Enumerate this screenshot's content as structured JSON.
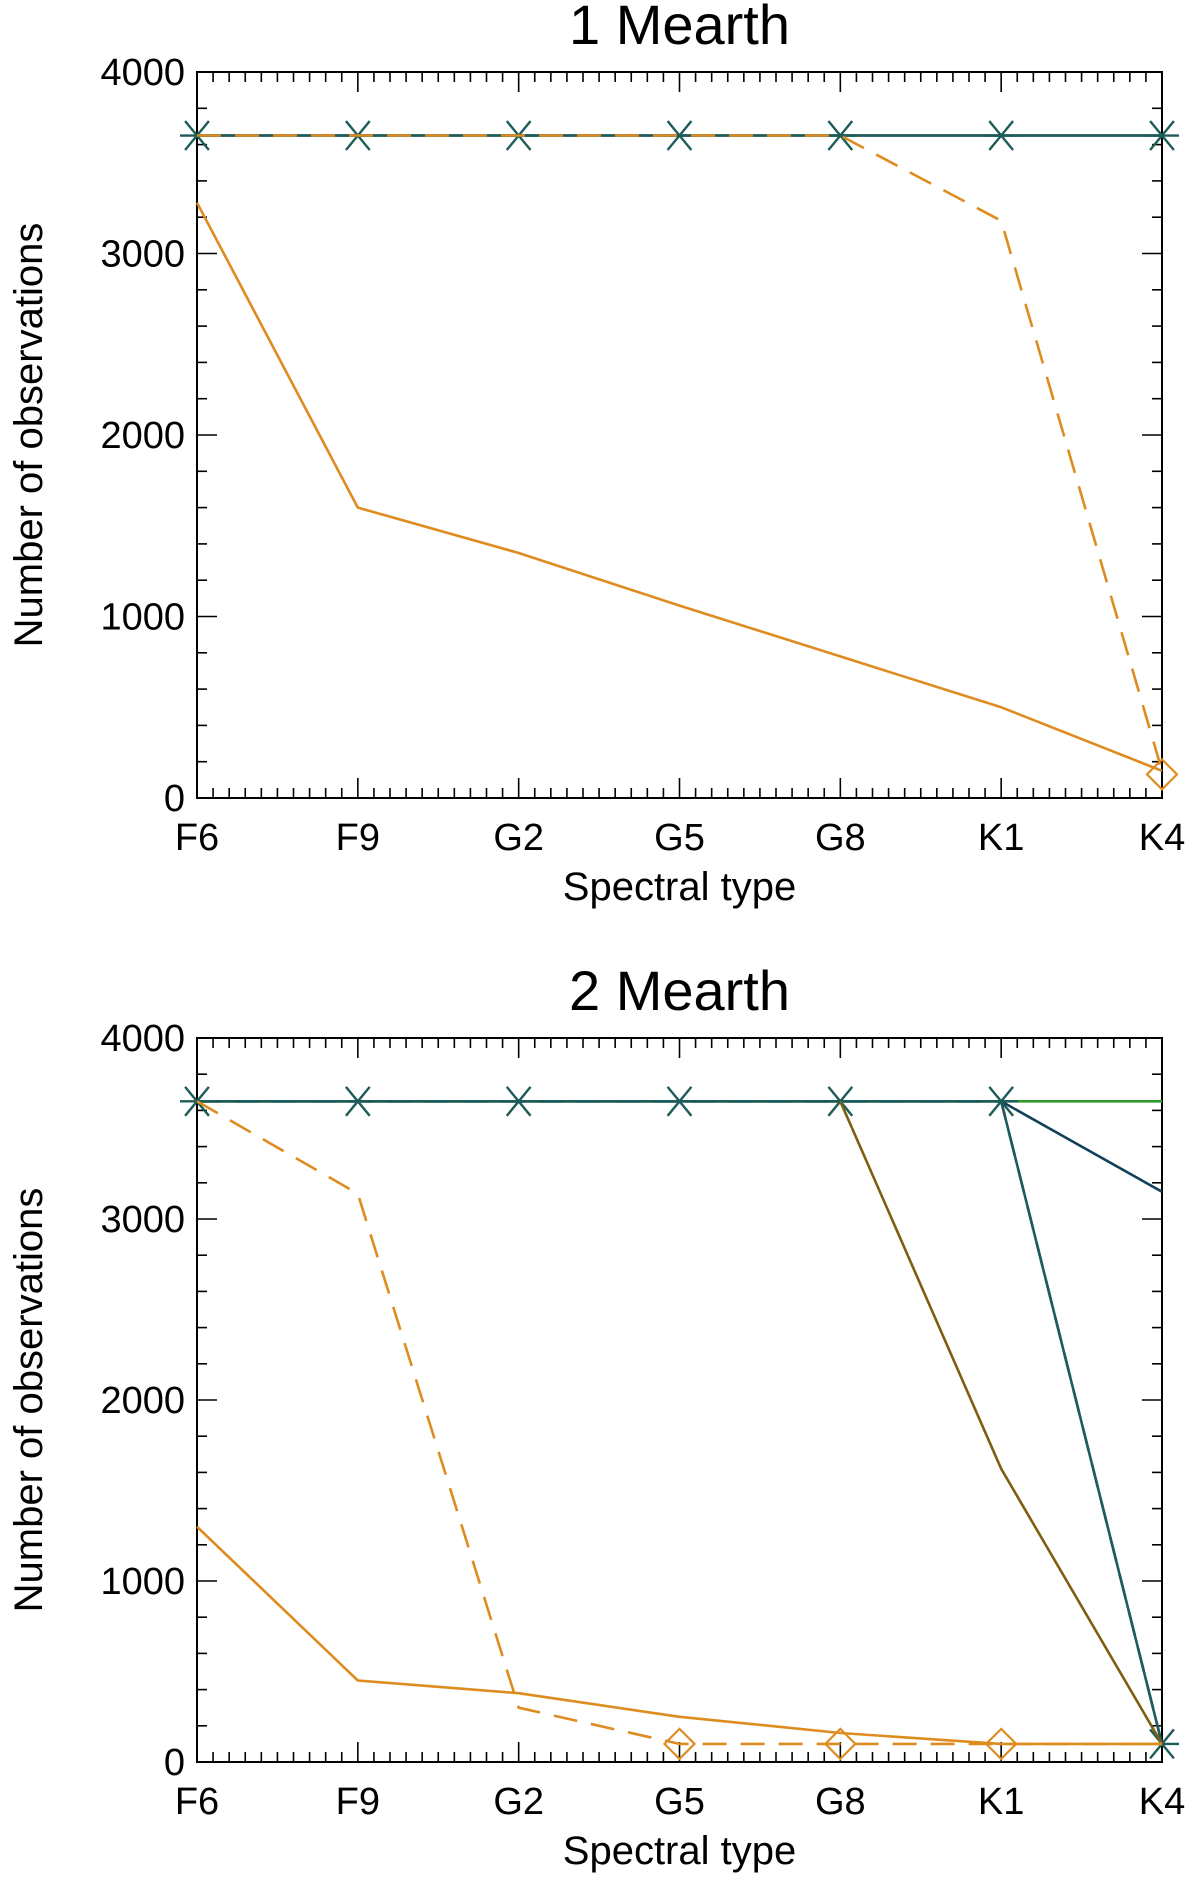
{
  "colors": {
    "orange": "#DE8C1F",
    "navy": "#123F5C",
    "teal": "#1E5C5A",
    "olive": "#7F5E10",
    "green": "#2E9A2E",
    "axis": "#000000"
  },
  "chart_data": [
    {
      "type": "line",
      "title": "1 Mearth",
      "xlabel": "Spectral type",
      "ylabel": "Number of observations",
      "categories": [
        "F6",
        "F9",
        "G2",
        "G5",
        "G8",
        "K1",
        "K4"
      ],
      "yticks": [
        "0",
        "1000",
        "2000",
        "3000",
        "4000"
      ],
      "ylim": [
        0,
        4000
      ],
      "grid": false,
      "series": [
        {
          "color": "navy",
          "dash": "solid",
          "marker": "none",
          "values": [
            3650,
            3650,
            3650,
            3650,
            3650,
            3650,
            3650
          ]
        },
        {
          "color": "teal",
          "dash": "solid",
          "marker": "asterisk",
          "values": [
            3650,
            3650,
            3650,
            3650,
            3650,
            3650,
            3650
          ]
        },
        {
          "color": "orange",
          "dash": "dashed",
          "marker": "none",
          "values": [
            3650,
            3650,
            3650,
            3650,
            3650,
            3180,
            150
          ]
        },
        {
          "color": "orange",
          "dash": "solid",
          "marker": "none",
          "values": [
            3280,
            1600,
            1350,
            1060,
            780,
            500,
            150
          ]
        },
        {
          "color": "orange",
          "dash": "none",
          "marker": "diamond",
          "values": [
            null,
            null,
            null,
            null,
            null,
            null,
            130
          ]
        }
      ]
    },
    {
      "type": "line",
      "title": "2 Mearth",
      "xlabel": "Spectral type",
      "ylabel": "Number of observations",
      "categories": [
        "F6",
        "F9",
        "G2",
        "G5",
        "G8",
        "K1",
        "K4"
      ],
      "yticks": [
        "0",
        "1000",
        "2000",
        "3000",
        "4000"
      ],
      "ylim": [
        0,
        4000
      ],
      "grid": false,
      "series": [
        {
          "color": "green",
          "dash": "solid",
          "marker": "none",
          "values": [
            3650,
            3650,
            3650,
            3650,
            3650,
            3650,
            3650
          ]
        },
        {
          "color": "navy",
          "dash": "solid",
          "marker": "none",
          "values": [
            3650,
            3650,
            3650,
            3650,
            3650,
            3650,
            3150
          ]
        },
        {
          "color": "navy",
          "dash": "dashed",
          "marker": "none",
          "values": [
            3650,
            3650,
            3650,
            3650,
            3650,
            3650,
            100
          ]
        },
        {
          "color": "teal",
          "dash": "solid",
          "marker": "asterisk",
          "values": [
            3650,
            3650,
            3650,
            3650,
            3650,
            3650,
            100
          ]
        },
        {
          "color": "olive",
          "dash": "solid",
          "marker": "none",
          "values": [
            null,
            null,
            null,
            null,
            3650,
            1620,
            100
          ]
        },
        {
          "color": "orange",
          "dash": "dashed",
          "marker": "none",
          "values": [
            3650,
            3140,
            300,
            100,
            100,
            100,
            100
          ]
        },
        {
          "color": "orange",
          "dash": "solid",
          "marker": "none",
          "values": [
            1300,
            450,
            380,
            250,
            160,
            100,
            100
          ]
        },
        {
          "color": "orange",
          "dash": "none",
          "marker": "diamond",
          "values": [
            null,
            null,
            null,
            100,
            100,
            100,
            null
          ]
        }
      ]
    }
  ]
}
